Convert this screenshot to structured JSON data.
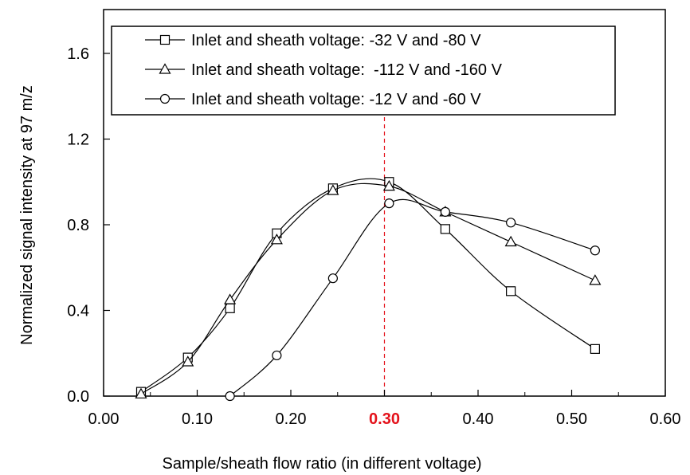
{
  "chart_data": {
    "type": "line",
    "xlabel": "Sample/sheath flow ratio (in different voltage)",
    "ylabel": "Normalized signal intensity at 97 m/z",
    "xlim": [
      0.0,
      0.6
    ],
    "ylim": [
      0.0,
      1.6
    ],
    "x_ticks": [
      "0.00",
      "0.10",
      "0.20",
      "0.30",
      "0.40",
      "0.50",
      "0.60"
    ],
    "y_ticks": [
      "0.0",
      "0.4",
      "0.8",
      "1.2",
      "1.6"
    ],
    "highlight": {
      "x": 0.3,
      "label": "0.30",
      "color": "#e4121b"
    },
    "grid": false,
    "legend_position": "top",
    "series": [
      {
        "name": "Inlet and sheath voltage: -32 V and -80 V",
        "marker": "square",
        "x": [
          0.04,
          0.09,
          0.135,
          0.185,
          0.245,
          0.305,
          0.365,
          0.435,
          0.525
        ],
        "y": [
          0.02,
          0.18,
          0.41,
          0.76,
          0.97,
          1.0,
          0.78,
          0.49,
          0.22
        ]
      },
      {
        "name": "Inlet and sheath voltage:  -112 V and -160 V",
        "marker": "triangle",
        "x": [
          0.04,
          0.09,
          0.135,
          0.185,
          0.245,
          0.305,
          0.365,
          0.435,
          0.525
        ],
        "y": [
          0.01,
          0.16,
          0.45,
          0.73,
          0.96,
          0.98,
          0.86,
          0.72,
          0.54
        ]
      },
      {
        "name": "Inlet and sheath voltage: -12 V and -60 V",
        "marker": "circle",
        "x": [
          0.135,
          0.185,
          0.245,
          0.305,
          0.365,
          0.435,
          0.525
        ],
        "y": [
          0.0,
          0.19,
          0.55,
          0.9,
          0.86,
          0.81,
          0.68
        ]
      }
    ]
  }
}
